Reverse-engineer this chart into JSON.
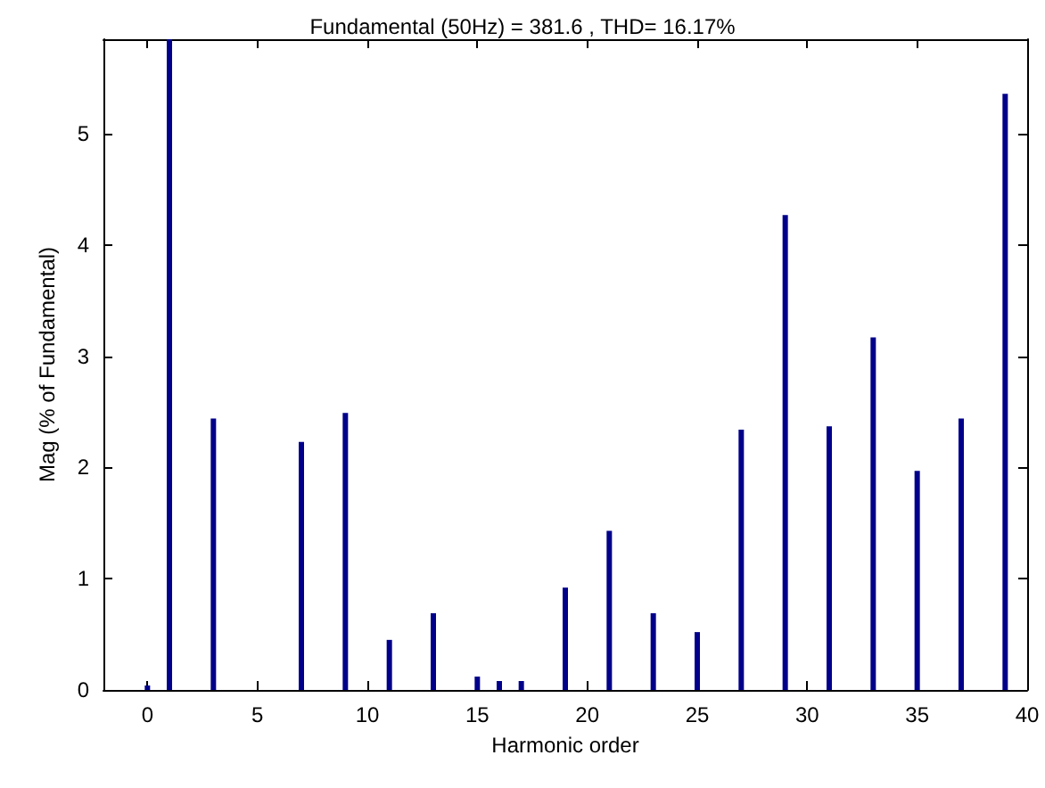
{
  "chart_data": {
    "type": "bar",
    "title": "Fundamental (50Hz) = 381.6 , THD= 16.17%",
    "xlabel": "Harmonic order",
    "ylabel": "Mag (% of Fundamental)",
    "x": [
      0,
      1,
      3,
      7,
      9,
      11,
      13,
      15,
      16,
      17,
      19,
      21,
      23,
      25,
      27,
      29,
      31,
      33,
      35,
      37,
      39
    ],
    "values": [
      0.04,
      5.85,
      2.44,
      2.23,
      2.49,
      0.45,
      0.69,
      0.12,
      0.08,
      0.08,
      0.92,
      1.43,
      0.69,
      0.52,
      2.34,
      4.27,
      2.37,
      3.17,
      1.97,
      2.44,
      5.36
    ],
    "color": "#00008b",
    "xlim": [
      -2,
      40
    ],
    "xticks": [
      0,
      5,
      10,
      15,
      20,
      25,
      30,
      35,
      40
    ],
    "ylim": [
      0,
      5.85
    ],
    "yticks": [
      0,
      1,
      2,
      3,
      4,
      5
    ],
    "grid": false
  }
}
